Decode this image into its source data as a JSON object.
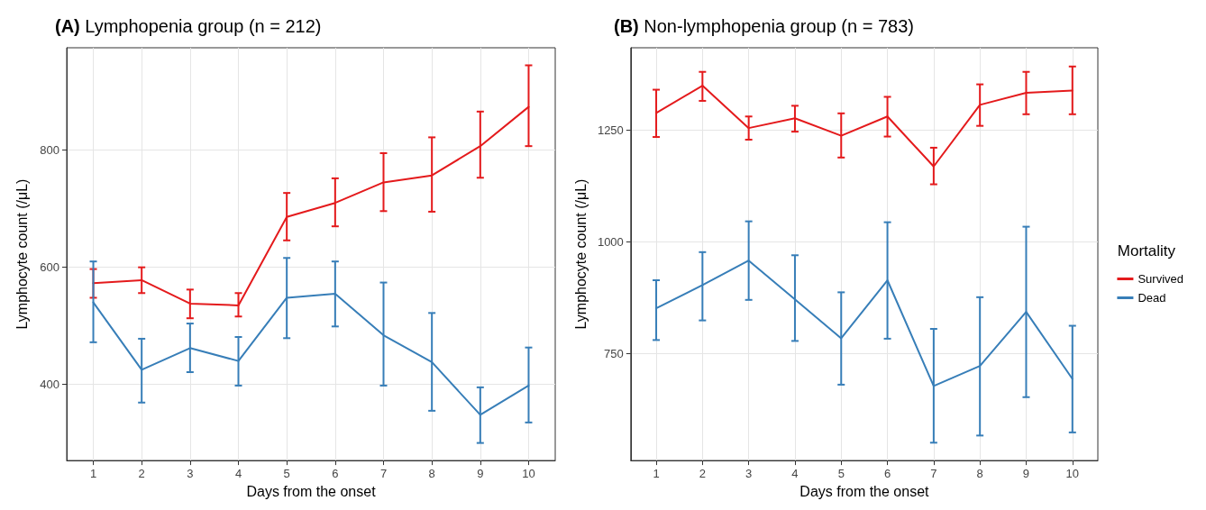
{
  "chart_data": [
    {
      "type": "line",
      "title": "(A) Lymphopenia group (n = 212)",
      "xlabel": "Days from the onset",
      "ylabel": "Lymphocyte count (/μL)",
      "x": [
        1,
        2,
        3,
        4,
        5,
        6,
        7,
        8,
        9,
        10
      ],
      "xlim": [
        0.45,
        10.55
      ],
      "xticks": [
        1,
        2,
        3,
        4,
        5,
        6,
        7,
        8,
        9,
        10
      ],
      "ylim": [
        270,
        975
      ],
      "yticks": [
        400,
        600,
        800
      ],
      "grid": true,
      "legend": false,
      "line_style": "solid",
      "series": [
        {
          "color": "#e41a1c",
          "values": [
            573,
            578,
            538,
            535,
            686,
            710,
            745,
            757,
            807,
            874
          ],
          "errors": [
            [
              548,
              597
            ],
            [
              556,
              600
            ],
            [
              513,
              562
            ],
            [
              516,
              556
            ],
            [
              646,
              727
            ],
            [
              670,
              752
            ],
            [
              696,
              795
            ],
            [
              695,
              822
            ],
            [
              753,
              866
            ],
            [
              807,
              945
            ]
          ]
        },
        {
          "color": "#377eb8",
          "values": [
            540,
            425,
            462,
            440,
            548,
            555,
            484,
            438,
            348,
            398
          ],
          "errors": [
            [
              472,
              610
            ],
            [
              369,
              478
            ],
            [
              421,
              504
            ],
            [
              398,
              481
            ],
            [
              479,
              616
            ],
            [
              499,
              610
            ],
            [
              398,
              574
            ],
            [
              355,
              522
            ],
            [
              300,
              395
            ],
            [
              335,
              463
            ]
          ]
        }
      ]
    },
    {
      "type": "line",
      "title": "(B) Non-lymphopenia group (n = 783)",
      "xlabel": "Days from the onset",
      "ylabel": "Lymphocyte count (/μL)",
      "legend_title": "Mortality",
      "x": [
        1,
        2,
        3,
        4,
        5,
        6,
        7,
        8,
        9,
        10
      ],
      "xlim": [
        0.45,
        10.55
      ],
      "xticks": [
        1,
        2,
        3,
        4,
        5,
        6,
        7,
        8,
        9,
        10
      ],
      "ylim": [
        510,
        1435
      ],
      "yticks": [
        750,
        1000,
        1250
      ],
      "grid": true,
      "legend": "right",
      "line_style": "solid",
      "series": [
        {
          "name": "Survived",
          "color": "#e41a1c",
          "values": [
            1289,
            1350,
            1255,
            1277,
            1238,
            1281,
            1169,
            1307,
            1334,
            1339
          ],
          "errors": [
            [
              1235,
              1341
            ],
            [
              1316,
              1381
            ],
            [
              1229,
              1281
            ],
            [
              1247,
              1305
            ],
            [
              1189,
              1288
            ],
            [
              1236,
              1325
            ],
            [
              1129,
              1211
            ],
            [
              1260,
              1353
            ],
            [
              1286,
              1381
            ],
            [
              1286,
              1393
            ]
          ]
        },
        {
          "name": "Dead",
          "color": "#377eb8",
          "values": [
            851,
            903,
            958,
            871,
            784,
            914,
            677,
            722,
            843,
            693
          ],
          "errors": [
            [
              780,
              914
            ],
            [
              824,
              977
            ],
            [
              870,
              1046
            ],
            [
              778,
              970
            ],
            [
              680,
              887
            ],
            [
              783,
              1044
            ],
            [
              550,
              805
            ],
            [
              566,
              876
            ],
            [
              652,
              1034
            ],
            [
              573,
              812
            ]
          ]
        }
      ]
    }
  ]
}
